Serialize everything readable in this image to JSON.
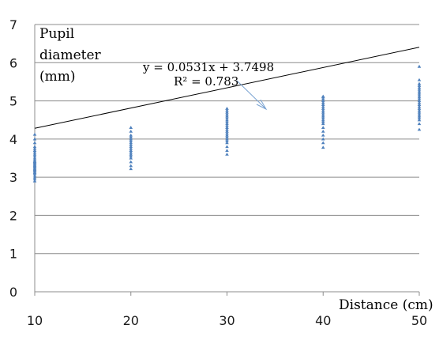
{
  "chart_data": {
    "type": "scatter",
    "title": "",
    "ylabel_lines": [
      "Pupil",
      "diameter",
      "(mm)"
    ],
    "xlabel": "Distance (cm)",
    "xlim": [
      10,
      50
    ],
    "ylim": [
      0,
      7
    ],
    "x_ticks": [
      "10",
      "20",
      "30",
      "40",
      "50"
    ],
    "y_ticks": [
      "0",
      "1",
      "2",
      "3",
      "4",
      "5",
      "6",
      "7"
    ],
    "grid": "horizontal",
    "marker_color": "#4f81bd",
    "trendline": {
      "slope": 0.0531,
      "intercept": 3.7498,
      "equation_text": "y = 0.0531x + 3.7498",
      "r2_text": "R² = 0.783",
      "color": "#000000"
    },
    "series": [
      {
        "points": [
          [
            10,
            2.9
          ],
          [
            10,
            2.95
          ],
          [
            10,
            3.0
          ],
          [
            10,
            3.05
          ],
          [
            10,
            3.1
          ],
          [
            10,
            3.12
          ],
          [
            10,
            3.15
          ],
          [
            10,
            3.18
          ],
          [
            10,
            3.2
          ],
          [
            10,
            3.22
          ],
          [
            10,
            3.25
          ],
          [
            10,
            3.28
          ],
          [
            10,
            3.3
          ],
          [
            10,
            3.32
          ],
          [
            10,
            3.35
          ],
          [
            10,
            3.38
          ],
          [
            10,
            3.4
          ],
          [
            10,
            3.42
          ],
          [
            10,
            3.45
          ],
          [
            10,
            3.5
          ],
          [
            10,
            3.55
          ],
          [
            10,
            3.6
          ],
          [
            10,
            3.65
          ],
          [
            10,
            3.7
          ],
          [
            10,
            3.75
          ],
          [
            10,
            3.8
          ],
          [
            10,
            3.9
          ],
          [
            10,
            4.0
          ],
          [
            10,
            4.12
          ],
          [
            20,
            3.22
          ],
          [
            20,
            3.3
          ],
          [
            20,
            3.4
          ],
          [
            20,
            3.5
          ],
          [
            20,
            3.55
          ],
          [
            20,
            3.6
          ],
          [
            20,
            3.65
          ],
          [
            20,
            3.7
          ],
          [
            20,
            3.75
          ],
          [
            20,
            3.8
          ],
          [
            20,
            3.85
          ],
          [
            20,
            3.9
          ],
          [
            20,
            3.95
          ],
          [
            20,
            4.0
          ],
          [
            20,
            4.05
          ],
          [
            20,
            4.1
          ],
          [
            20,
            4.2
          ],
          [
            20,
            4.3
          ],
          [
            30,
            3.6
          ],
          [
            30,
            3.7
          ],
          [
            30,
            3.8
          ],
          [
            30,
            3.9
          ],
          [
            30,
            3.95
          ],
          [
            30,
            4.0
          ],
          [
            30,
            4.05
          ],
          [
            30,
            4.1
          ],
          [
            30,
            4.15
          ],
          [
            30,
            4.2
          ],
          [
            30,
            4.25
          ],
          [
            30,
            4.3
          ],
          [
            30,
            4.35
          ],
          [
            30,
            4.4
          ],
          [
            30,
            4.45
          ],
          [
            30,
            4.5
          ],
          [
            30,
            4.55
          ],
          [
            30,
            4.6
          ],
          [
            30,
            4.65
          ],
          [
            30,
            4.7
          ],
          [
            30,
            4.75
          ],
          [
            30,
            4.8
          ],
          [
            40,
            3.78
          ],
          [
            40,
            3.9
          ],
          [
            40,
            4.0
          ],
          [
            40,
            4.1
          ],
          [
            40,
            4.2
          ],
          [
            40,
            4.3
          ],
          [
            40,
            4.4
          ],
          [
            40,
            4.45
          ],
          [
            40,
            4.5
          ],
          [
            40,
            4.55
          ],
          [
            40,
            4.6
          ],
          [
            40,
            4.65
          ],
          [
            40,
            4.7
          ],
          [
            40,
            4.75
          ],
          [
            40,
            4.8
          ],
          [
            40,
            4.85
          ],
          [
            40,
            4.9
          ],
          [
            40,
            4.95
          ],
          [
            40,
            5.0
          ],
          [
            40,
            5.05
          ],
          [
            40,
            5.1
          ],
          [
            40,
            5.12
          ],
          [
            50,
            4.25
          ],
          [
            50,
            4.4
          ],
          [
            50,
            4.5
          ],
          [
            50,
            4.55
          ],
          [
            50,
            4.6
          ],
          [
            50,
            4.65
          ],
          [
            50,
            4.7
          ],
          [
            50,
            4.75
          ],
          [
            50,
            4.8
          ],
          [
            50,
            4.85
          ],
          [
            50,
            4.9
          ],
          [
            50,
            4.95
          ],
          [
            50,
            5.0
          ],
          [
            50,
            5.05
          ],
          [
            50,
            5.1
          ],
          [
            50,
            5.15
          ],
          [
            50,
            5.2
          ],
          [
            50,
            5.25
          ],
          [
            50,
            5.3
          ],
          [
            50,
            5.35
          ],
          [
            50,
            5.4
          ],
          [
            50,
            5.45
          ],
          [
            50,
            5.55
          ],
          [
            50,
            5.9
          ]
        ]
      }
    ]
  }
}
